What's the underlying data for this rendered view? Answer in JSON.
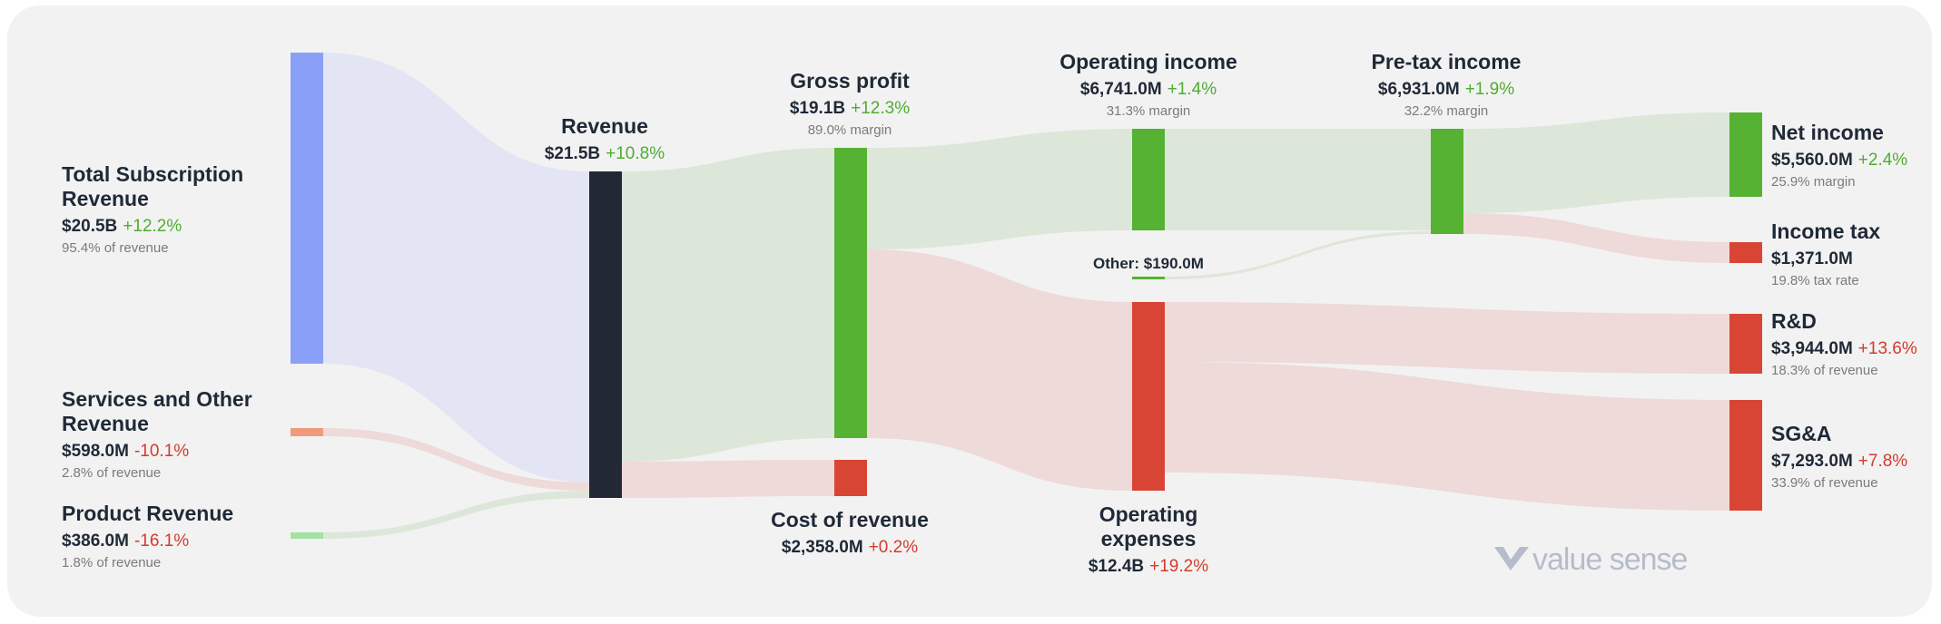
{
  "chart_data": {
    "type": "sankey",
    "currency": "USD",
    "colors": {
      "subscription": "#8aa0f8",
      "services": "#ef9a7c",
      "product": "#a3e2a1",
      "revenue": "#222834",
      "profit": "#55b232",
      "cost": "#d94535",
      "flow_revenue": "#e1e4f3",
      "flow_profit": "#dbe6d7",
      "flow_cost": "#edd8d6",
      "text": "#1f2937",
      "muted": "#7b7b7b",
      "positive": "#4fad2f",
      "negative": "#d43a2c"
    },
    "nodes": [
      {
        "id": "subscription",
        "name_lines": [
          "Total Subscription",
          "Revenue"
        ],
        "value_label": "$20.5B",
        "change": "+12.2%",
        "trend": "pos",
        "sub": "95.4% of revenue"
      },
      {
        "id": "services",
        "name_lines": [
          "Services and Other",
          "Revenue"
        ],
        "value_label": "$598.0M",
        "change": "-10.1%",
        "trend": "neg",
        "sub": "2.8% of revenue"
      },
      {
        "id": "product",
        "name_lines": [
          "Product Revenue"
        ],
        "value_label": "$386.0M",
        "change": "-16.1%",
        "trend": "neg",
        "sub": "1.8% of revenue"
      },
      {
        "id": "revenue",
        "name_lines": [
          "Revenue"
        ],
        "value_label": "$21.5B",
        "change": "+10.8%",
        "trend": "pos",
        "sub": ""
      },
      {
        "id": "gross_profit",
        "name_lines": [
          "Gross profit"
        ],
        "value_label": "$19.1B",
        "change": "+12.3%",
        "trend": "pos",
        "sub": "89.0% margin"
      },
      {
        "id": "cost_of_revenue",
        "name_lines": [
          "Cost of revenue"
        ],
        "value_label": "$2,358.0M",
        "change": "+0.2%",
        "trend": "neg",
        "sub": ""
      },
      {
        "id": "operating_income",
        "name_lines": [
          "Operating income"
        ],
        "value_label": "$6,741.0M",
        "change": "+1.4%",
        "trend": "pos",
        "sub": "31.3% margin"
      },
      {
        "id": "operating_expenses",
        "name_lines": [
          "Operating",
          "expenses"
        ],
        "value_label": "$12.4B",
        "change": "+19.2%",
        "trend": "neg",
        "sub": ""
      },
      {
        "id": "other",
        "name_lines": [
          "Other: $190.0M"
        ],
        "value_label": "",
        "change": "",
        "trend": "",
        "sub": ""
      },
      {
        "id": "pretax_income",
        "name_lines": [
          "Pre-tax income"
        ],
        "value_label": "$6,931.0M",
        "change": "+1.9%",
        "trend": "pos",
        "sub": "32.2% margin"
      },
      {
        "id": "net_income",
        "name_lines": [
          "Net income"
        ],
        "value_label": "$5,560.0M",
        "change": "+2.4%",
        "trend": "pos",
        "sub": "25.9% margin"
      },
      {
        "id": "income_tax",
        "name_lines": [
          "Income tax"
        ],
        "value_label": "$1,371.0M",
        "change": "",
        "trend": "",
        "sub": "19.8% tax rate"
      },
      {
        "id": "rnd",
        "name_lines": [
          "R&D"
        ],
        "value_label": "$3,944.0M",
        "change": "+13.6%",
        "trend": "neg",
        "sub": "18.3% of revenue"
      },
      {
        "id": "sga",
        "name_lines": [
          "SG&A"
        ],
        "value_label": "$7,293.0M",
        "change": "+7.8%",
        "trend": "neg",
        "sub": "33.9% of revenue"
      }
    ],
    "links": [
      {
        "source": "subscription",
        "target": "revenue",
        "value": 20.5
      },
      {
        "source": "services",
        "target": "revenue",
        "value": 0.598
      },
      {
        "source": "product",
        "target": "revenue",
        "value": 0.386
      },
      {
        "source": "revenue",
        "target": "gross_profit",
        "value": 19.1
      },
      {
        "source": "revenue",
        "target": "cost_of_revenue",
        "value": 2.358
      },
      {
        "source": "gross_profit",
        "target": "operating_income",
        "value": 6.741
      },
      {
        "source": "gross_profit",
        "target": "operating_expenses",
        "value": 12.4
      },
      {
        "source": "operating_income",
        "target": "pretax_income",
        "value": 6.741
      },
      {
        "source": "other",
        "target": "pretax_income",
        "value": 0.19
      },
      {
        "source": "pretax_income",
        "target": "net_income",
        "value": 5.56
      },
      {
        "source": "pretax_income",
        "target": "income_tax",
        "value": 1.371
      },
      {
        "source": "operating_expenses",
        "target": "rnd",
        "value": 3.944
      },
      {
        "source": "operating_expenses",
        "target": "sga",
        "value": 7.293
      }
    ]
  },
  "watermark": {
    "text": "value sense"
  }
}
